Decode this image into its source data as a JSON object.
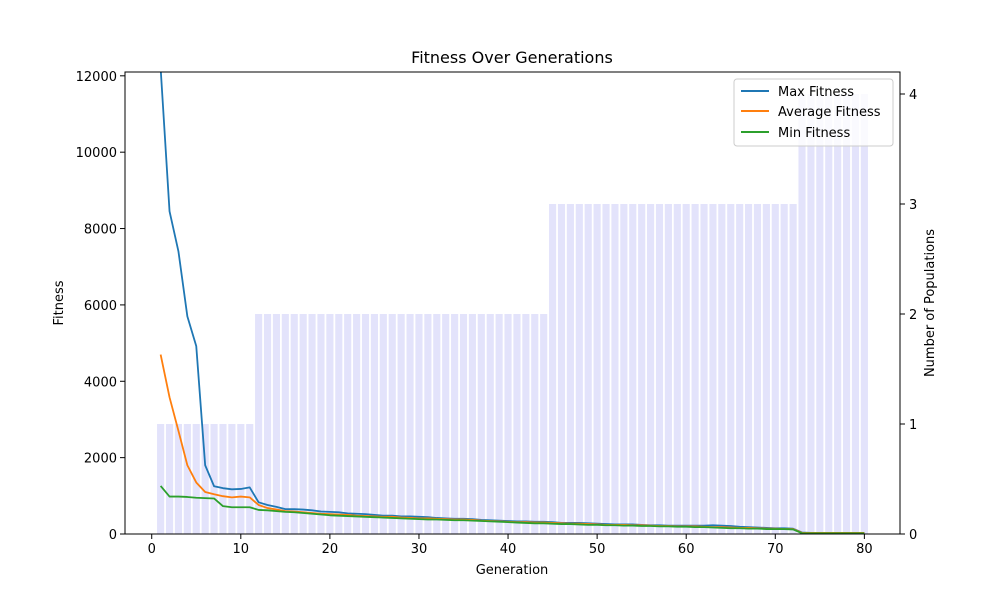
{
  "chart_data": {
    "type": "line",
    "title": "Fitness Over Generations",
    "xlabel": "Generation",
    "ylabel": "Fitness",
    "y2label": "Number of Populations",
    "xlim": [
      -3,
      84
    ],
    "ylim": [
      0,
      12100
    ],
    "y2lim": [
      0,
      4.2
    ],
    "xticks": [
      0,
      10,
      20,
      30,
      40,
      50,
      60,
      70,
      80
    ],
    "yticks": [
      0,
      2000,
      4000,
      6000,
      8000,
      10000,
      12000
    ],
    "y2ticks": [
      0,
      1,
      2,
      3,
      4
    ],
    "grid": false,
    "legend_position": "top-right",
    "colors": {
      "max": "#1f77b4",
      "avg": "#ff7f0e",
      "min": "#2ca02c",
      "bars": "#e3e3fb"
    },
    "generations": [
      1,
      2,
      3,
      4,
      5,
      6,
      7,
      8,
      9,
      10,
      11,
      12,
      13,
      14,
      15,
      16,
      17,
      18,
      19,
      20,
      21,
      22,
      23,
      24,
      25,
      26,
      27,
      28,
      29,
      30,
      31,
      32,
      33,
      34,
      35,
      36,
      37,
      38,
      39,
      40,
      41,
      42,
      43,
      44,
      45,
      46,
      47,
      48,
      49,
      50,
      51,
      52,
      53,
      54,
      55,
      56,
      57,
      58,
      59,
      60,
      61,
      62,
      63,
      64,
      65,
      66,
      67,
      68,
      69,
      70,
      71,
      72,
      73,
      74,
      75,
      76,
      77,
      78,
      79,
      80
    ],
    "series": [
      {
        "name": "Max Fitness",
        "color_key": "max",
        "values": [
          12200,
          8450,
          7400,
          5700,
          4920,
          1800,
          1250,
          1200,
          1170,
          1180,
          1220,
          830,
          760,
          710,
          650,
          650,
          640,
          620,
          590,
          580,
          570,
          540,
          530,
          520,
          500,
          480,
          480,
          460,
          460,
          450,
          440,
          420,
          410,
          400,
          400,
          390,
          370,
          360,
          350,
          340,
          330,
          330,
          320,
          320,
          310,
          290,
          290,
          290,
          280,
          270,
          260,
          250,
          250,
          250,
          240,
          230,
          230,
          220,
          220,
          220,
          220,
          220,
          230,
          220,
          210,
          190,
          180,
          170,
          160,
          150,
          150,
          140,
          40,
          30,
          30,
          30,
          30,
          30,
          30,
          30
        ]
      },
      {
        "name": "Average Fitness",
        "color_key": "avg",
        "values": [
          4700,
          3580,
          2700,
          1800,
          1350,
          1100,
          1040,
          990,
          960,
          980,
          960,
          760,
          680,
          640,
          600,
          590,
          570,
          550,
          530,
          520,
          510,
          500,
          480,
          470,
          460,
          450,
          450,
          430,
          420,
          410,
          410,
          400,
          390,
          380,
          380,
          370,
          350,
          340,
          330,
          320,
          310,
          310,
          300,
          300,
          290,
          280,
          270,
          270,
          260,
          250,
          240,
          240,
          240,
          230,
          230,
          220,
          210,
          210,
          200,
          200,
          200,
          190,
          180,
          180,
          170,
          160,
          160,
          150,
          140,
          140,
          130,
          130,
          30,
          30,
          30,
          30,
          30,
          30,
          30,
          30
        ]
      },
      {
        "name": "Min Fitness",
        "color_key": "min",
        "values": [
          1260,
          980,
          980,
          970,
          950,
          940,
          930,
          730,
          700,
          700,
          700,
          630,
          620,
          600,
          580,
          570,
          550,
          530,
          510,
          490,
          480,
          470,
          460,
          450,
          440,
          430,
          420,
          410,
          400,
          390,
          380,
          380,
          370,
          360,
          360,
          350,
          340,
          330,
          320,
          310,
          300,
          290,
          280,
          280,
          270,
          260,
          260,
          250,
          240,
          240,
          230,
          230,
          220,
          220,
          210,
          210,
          200,
          200,
          190,
          190,
          180,
          180,
          170,
          160,
          150,
          150,
          140,
          140,
          130,
          130,
          130,
          120,
          20,
          20,
          20,
          20,
          20,
          20,
          20,
          20
        ]
      }
    ],
    "populations": [
      1,
      1,
      1,
      1,
      1,
      1,
      1,
      1,
      1,
      1,
      1,
      2,
      2,
      2,
      2,
      2,
      2,
      2,
      2,
      2,
      2,
      2,
      2,
      2,
      2,
      2,
      2,
      2,
      2,
      2,
      2,
      2,
      2,
      2,
      2,
      2,
      2,
      2,
      2,
      2,
      2,
      2,
      2,
      2,
      3,
      3,
      3,
      3,
      3,
      3,
      3,
      3,
      3,
      3,
      3,
      3,
      3,
      3,
      3,
      3,
      3,
      3,
      3,
      3,
      3,
      3,
      3,
      3,
      3,
      3,
      3,
      3,
      4,
      4,
      4,
      4,
      4,
      4,
      4,
      4
    ]
  }
}
